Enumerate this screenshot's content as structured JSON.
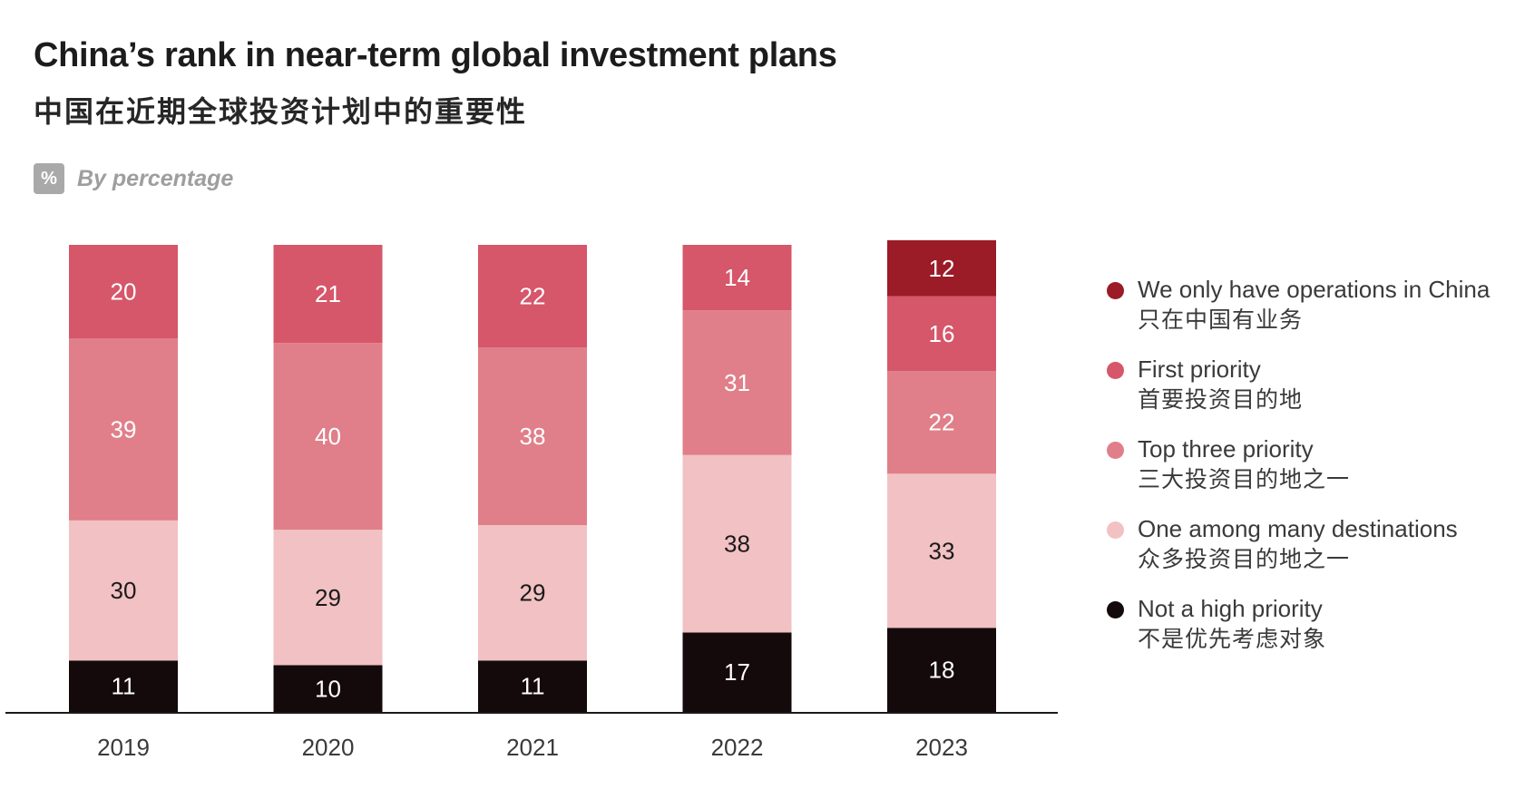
{
  "title": "China’s rank in near-term global investment plans",
  "subtitle": "中国在近期全球投资计划中的重要性",
  "unit": {
    "badge": "%",
    "label": "By percentage"
  },
  "chart_data": {
    "type": "bar",
    "stacked": true,
    "categories": [
      "2019",
      "2020",
      "2021",
      "2022",
      "2023"
    ],
    "series": [
      {
        "name": "Not a high priority",
        "name_cn": "不是优先考虑对象",
        "color": "#140a0b",
        "label_color": "#ffffff",
        "values": [
          11,
          10,
          11,
          17,
          18
        ]
      },
      {
        "name": "One among many destinations",
        "name_cn": "众多投资目的地之一",
        "color": "#f2c1c3",
        "label_color": "#1a1a1a",
        "values": [
          30,
          29,
          29,
          38,
          33
        ]
      },
      {
        "name": "Top three priority",
        "name_cn": "三大投资目的地之一",
        "color": "#e07f89",
        "label_color": "#ffffff",
        "values": [
          39,
          40,
          38,
          31,
          22
        ]
      },
      {
        "name": "First priority",
        "name_cn": "首要投资目的地",
        "color": "#d6566a",
        "label_color": "#ffffff",
        "values": [
          20,
          21,
          22,
          14,
          16
        ]
      },
      {
        "name": "We only have operations in China",
        "name_cn": "只在中国有业务",
        "color": "#9b1b27",
        "label_color": "#ffffff",
        "values": [
          null,
          null,
          null,
          null,
          12
        ]
      }
    ],
    "ylim": [
      0,
      100
    ],
    "grid": false,
    "legend_position": "right"
  },
  "legend": [
    {
      "label": "We only have operations in China",
      "label_cn": "只在中国有业务",
      "color": "#9b1b27"
    },
    {
      "label": "First priority",
      "label_cn": "首要投资目的地",
      "color": "#d6566a"
    },
    {
      "label": "Top three priority",
      "label_cn": "三大投资目的地之一",
      "color": "#e07f89"
    },
    {
      "label": "One among many destinations",
      "label_cn": "众多投资目的地之一",
      "color": "#f2c1c3"
    },
    {
      "label": "Not a high priority",
      "label_cn": "不是优先考虑对象",
      "color": "#140a0b"
    }
  ]
}
